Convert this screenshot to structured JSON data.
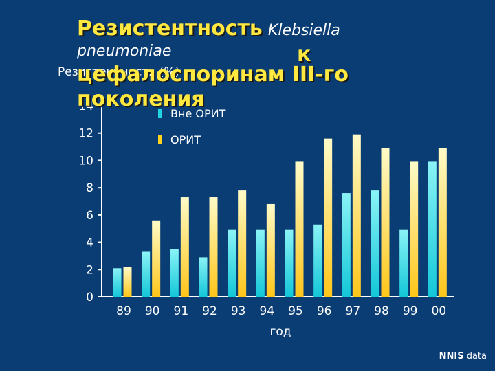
{
  "title": {
    "bold_word": "Резистентность",
    "genus": "Klebsiella",
    "species": "pneumoniae",
    "k": "к",
    "line3": "цефалоспоринам III-го",
    "line4": "поколения"
  },
  "source": {
    "bold": "NNIS",
    "rest": " data"
  },
  "colors": {
    "background": "#0b3d75",
    "non_icu": "#22d4de",
    "icu": "#ffd21e",
    "axis": "#ffffff"
  },
  "chart_data": {
    "type": "bar",
    "ylabel": "Резистентность (%)",
    "xlabel": "год",
    "categories": [
      "89",
      "90",
      "91",
      "92",
      "93",
      "94",
      "95",
      "96",
      "97",
      "98",
      "99",
      "00"
    ],
    "yticks": [
      0,
      2,
      4,
      6,
      8,
      10,
      12,
      14
    ],
    "ylim": [
      0,
      14
    ],
    "legend_position": "top-left",
    "series": [
      {
        "name": "Вне ОРИТ",
        "color": "#22d4de",
        "values": [
          2.1,
          3.3,
          3.5,
          2.9,
          4.9,
          4.9,
          4.9,
          5.3,
          7.6,
          7.8,
          4.9,
          9.9
        ]
      },
      {
        "name": "ОРИТ",
        "color": "#ffd21e",
        "values": [
          2.2,
          5.6,
          7.3,
          7.3,
          7.8,
          6.8,
          9.9,
          11.6,
          11.9,
          10.9,
          9.9,
          10.9
        ]
      }
    ]
  }
}
